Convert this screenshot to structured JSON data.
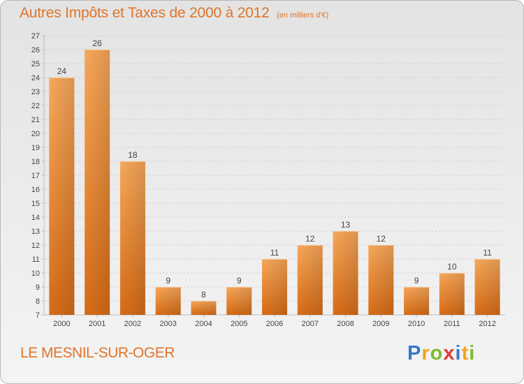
{
  "header": {
    "title": "Autres Impôts et Taxes de 2000 à 2012",
    "unit_note": "(en milliers d'€)"
  },
  "footer": {
    "commune": "LE MESNIL-SUR-OGER",
    "logo": {
      "letters": [
        "P",
        "r",
        "o",
        "x",
        "i",
        "t",
        "i"
      ],
      "colors": [
        "#3a78c8",
        "#f2a51a",
        "#7cbd2a",
        "#e23b3b",
        "#3a78c8",
        "#f2a51a",
        "#7cbd2a"
      ]
    }
  },
  "chart_data": {
    "type": "bar",
    "categories": [
      "2000",
      "2001",
      "2002",
      "2003",
      "2004",
      "2005",
      "2006",
      "2007",
      "2008",
      "2009",
      "2010",
      "2011",
      "2012"
    ],
    "values": [
      24,
      26,
      18,
      9,
      8,
      9,
      11,
      12,
      13,
      12,
      9,
      10,
      11
    ],
    "ylim": [
      7,
      27
    ],
    "yticks": [
      7,
      8,
      9,
      10,
      11,
      12,
      13,
      14,
      15,
      16,
      17,
      18,
      19,
      20,
      21,
      22,
      23,
      24,
      25,
      26,
      27
    ],
    "xlabel": "",
    "ylabel": "",
    "grid": true,
    "legend": "none",
    "colors": {
      "bar": "#f0902c",
      "bar_light": "#f7a85a",
      "bar_dark": "#d76c17",
      "text": "#444444",
      "axis": "#bdbdbd",
      "grid": "#cccccc"
    }
  }
}
